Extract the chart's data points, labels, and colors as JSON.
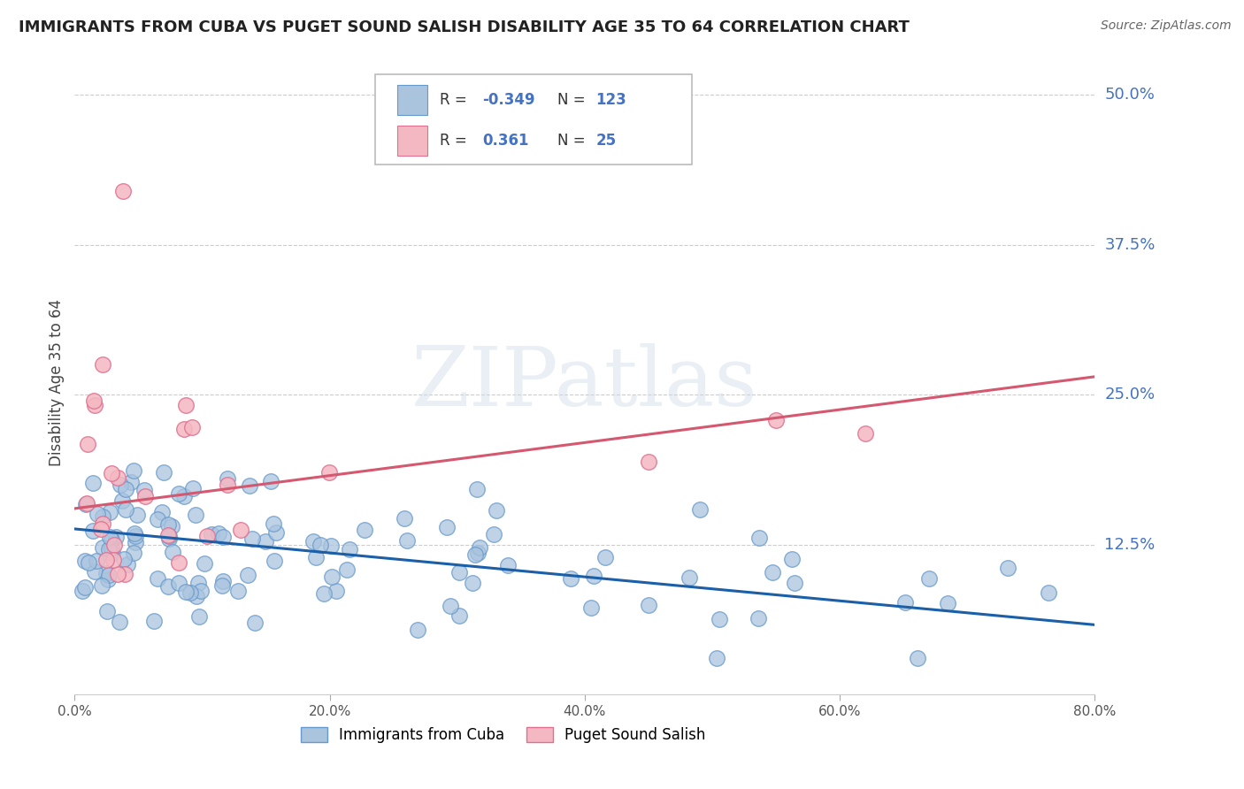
{
  "title": "IMMIGRANTS FROM CUBA VS PUGET SOUND SALISH DISABILITY AGE 35 TO 64 CORRELATION CHART",
  "source": "Source: ZipAtlas.com",
  "ylabel": "Disability Age 35 to 64",
  "xlabel": "",
  "xlim": [
    0.0,
    0.8
  ],
  "ylim": [
    0.0,
    0.52
  ],
  "xtick_labels": [
    "0.0%",
    "20.0%",
    "40.0%",
    "60.0%",
    "80.0%"
  ],
  "xtick_vals": [
    0.0,
    0.2,
    0.4,
    0.6,
    0.8
  ],
  "ytick_labels": [
    "12.5%",
    "25.0%",
    "37.5%",
    "50.0%"
  ],
  "ytick_vals": [
    0.125,
    0.25,
    0.375,
    0.5
  ],
  "blue_R": -0.349,
  "blue_N": 123,
  "pink_R": 0.361,
  "pink_N": 25,
  "blue_color": "#aac4de",
  "blue_edge_color": "#6699cc",
  "blue_line_color": "#1a5fa8",
  "pink_color": "#f4b8c2",
  "pink_edge_color": "#e07090",
  "pink_line_color": "#d45870",
  "legend_label_blue": "Immigrants from Cuba",
  "legend_label_pink": "Puget Sound Salish",
  "watermark": "ZIPatlas",
  "blue_line_y_start": 0.138,
  "blue_line_y_end": 0.058,
  "pink_line_y_start": 0.155,
  "pink_line_y_end": 0.265,
  "title_color": "#222222",
  "source_color": "#666666",
  "axis_color": "#4472c4",
  "grid_color": "#cccccc"
}
